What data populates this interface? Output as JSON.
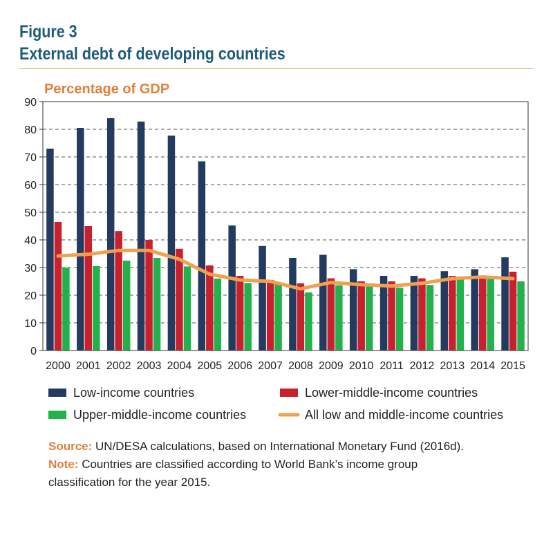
{
  "figure": {
    "number": "Figure 3",
    "title": "External debt of developing countries"
  },
  "source": {
    "label": "Source:",
    "text": "UN/DESA calculations, based on International Monetary Fund (2016d)."
  },
  "note": {
    "label": "Note:",
    "text": "Countries are classified according to World Bank’s income group classification for the year 2015."
  },
  "colors": {
    "low": "#243a5e",
    "lower_middle": "#c8202d",
    "upper_middle": "#22b14c",
    "all": "#f0a050",
    "unit_label": "#e0803c"
  },
  "chart_data": {
    "type": "bar",
    "title": "",
    "ylabel": "Percentage of GDP",
    "xlabel": "",
    "ylim": [
      0,
      90
    ],
    "yticks": [
      "0",
      "10",
      "20",
      "30",
      "40",
      "50",
      "60",
      "70",
      "80",
      "90"
    ],
    "grid": "horizontal dashed",
    "legend_position": "bottom",
    "categories": [
      "2000",
      "2001",
      "2002",
      "2003",
      "2004",
      "2005",
      "2006",
      "2007",
      "2008",
      "2009",
      "2010",
      "2011",
      "2012",
      "2013",
      "2014",
      "2015"
    ],
    "series": [
      {
        "name": "Low-income countries",
        "type": "bar",
        "values": [
          73,
          80.5,
          84,
          82.8,
          77.7,
          68.4,
          45.2,
          37.8,
          33.5,
          34.6,
          29.4,
          27,
          27,
          28.7,
          29.4,
          33.7
        ]
      },
      {
        "name": "Lower-middle-income countries",
        "type": "bar",
        "values": [
          46.5,
          45,
          43.2,
          40,
          36.8,
          30.8,
          27,
          25.5,
          24.3,
          26.1,
          25,
          25,
          26.1,
          27,
          26.2,
          28.5
        ]
      },
      {
        "name": "Upper-middle-income countries",
        "type": "bar",
        "values": [
          30,
          30.5,
          32.5,
          33.5,
          30.4,
          26,
          24.4,
          24,
          21,
          23.6,
          23.5,
          22.7,
          23.7,
          26,
          26.3,
          25
        ]
      },
      {
        "name": "All low and middle-income countries",
        "type": "line",
        "values": [
          34.2,
          34.8,
          36.2,
          36.2,
          33,
          27.6,
          25.5,
          25,
          22.3,
          24.6,
          23.8,
          23.3,
          24.3,
          26,
          26.6,
          26
        ]
      }
    ]
  }
}
